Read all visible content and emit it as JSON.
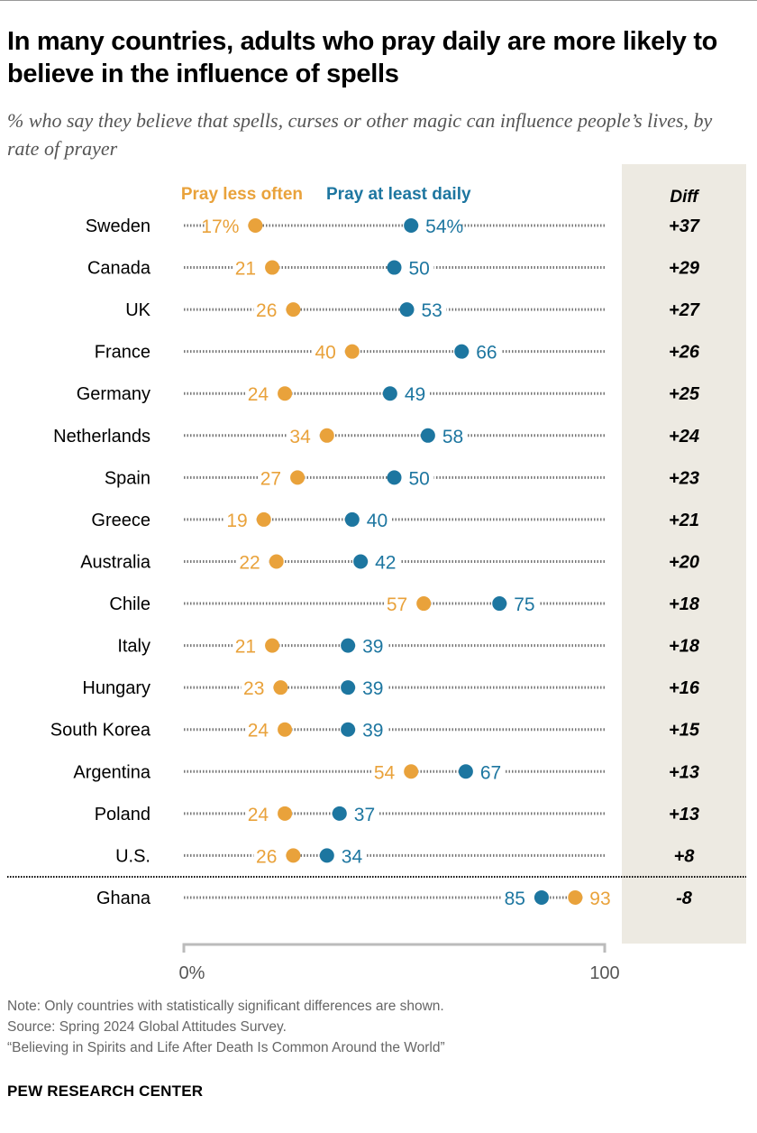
{
  "title": "In many countries, adults who pray daily are more likely to believe in the influence of spells",
  "subtitle": "% who say they believe that spells, curses or other magic can influence people’s lives, by rate of prayer",
  "colors": {
    "less": "#E9A23B",
    "daily": "#1D76A0",
    "diff_panel": "#EDEAE2"
  },
  "chart_data": {
    "type": "dot",
    "xlim": [
      0,
      100
    ],
    "x_ticks": [
      "0%",
      "100"
    ],
    "legend": [
      "Pray less often",
      "Pray at least daily"
    ],
    "diff_header": "Diff",
    "rows": [
      {
        "country": "Sweden",
        "less": 17,
        "daily": 54,
        "diff": "+37",
        "less_label": "17%",
        "daily_label": "54%"
      },
      {
        "country": "Canada",
        "less": 21,
        "daily": 50,
        "diff": "+29"
      },
      {
        "country": "UK",
        "less": 26,
        "daily": 53,
        "diff": "+27"
      },
      {
        "country": "France",
        "less": 40,
        "daily": 66,
        "diff": "+26"
      },
      {
        "country": "Germany",
        "less": 24,
        "daily": 49,
        "diff": "+25"
      },
      {
        "country": "Netherlands",
        "less": 34,
        "daily": 58,
        "diff": "+24"
      },
      {
        "country": "Spain",
        "less": 27,
        "daily": 50,
        "diff": "+23"
      },
      {
        "country": "Greece",
        "less": 19,
        "daily": 40,
        "diff": "+21"
      },
      {
        "country": "Australia",
        "less": 22,
        "daily": 42,
        "diff": "+20"
      },
      {
        "country": "Chile",
        "less": 57,
        "daily": 75,
        "diff": "+18"
      },
      {
        "country": "Italy",
        "less": 21,
        "daily": 39,
        "diff": "+18"
      },
      {
        "country": "Hungary",
        "less": 23,
        "daily": 39,
        "diff": "+16"
      },
      {
        "country": "South Korea",
        "less": 24,
        "daily": 39,
        "diff": "+15"
      },
      {
        "country": "Argentina",
        "less": 54,
        "daily": 67,
        "diff": "+13"
      },
      {
        "country": "Poland",
        "less": 24,
        "daily": 37,
        "diff": "+13"
      },
      {
        "country": "U.S.",
        "less": 26,
        "daily": 34,
        "diff": "+8"
      },
      {
        "country": "Ghana",
        "less": 93,
        "daily": 85,
        "diff": "-8"
      }
    ]
  },
  "notes": [
    "Note: Only countries with statistically significant differences are shown.",
    "Source: Spring 2024 Global Attitudes Survey.",
    "“Believing in Spirits and Life After Death Is Common Around the World”"
  ],
  "brand": "PEW RESEARCH CENTER"
}
